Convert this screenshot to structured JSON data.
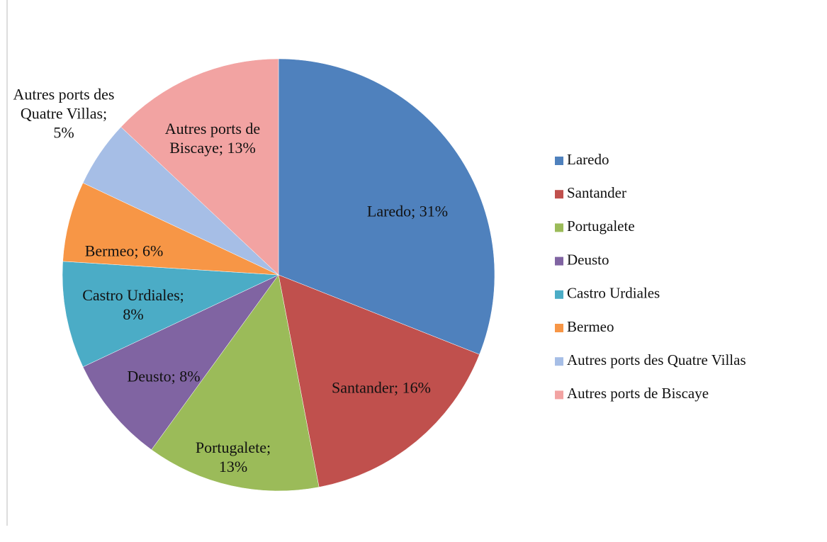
{
  "chart_data": {
    "type": "pie",
    "categories": [
      "Laredo",
      "Santander",
      "Portugalete",
      "Deusto",
      "Castro Urdiales",
      "Bermeo",
      "Autres ports des Quatre Villas",
      "Autres ports de Biscaye"
    ],
    "values": [
      31,
      16,
      13,
      8,
      8,
      6,
      5,
      13
    ],
    "value_labels": [
      "Laredo; 31%",
      "Santander; 16%",
      "Portugalete; 13%",
      "Deusto; 8%",
      "Castro Urdiales; 8%",
      "Bermeo; 6%",
      "Autres ports des Quatre Villas; 5%",
      "Autres ports de Biscaye; 13%"
    ],
    "colors": [
      "#4f81bd",
      "#c0504d",
      "#9bbb59",
      "#8064a2",
      "#4bacc6",
      "#f79646",
      "#a6bee6",
      "#f2a3a2"
    ],
    "legend": "right"
  }
}
